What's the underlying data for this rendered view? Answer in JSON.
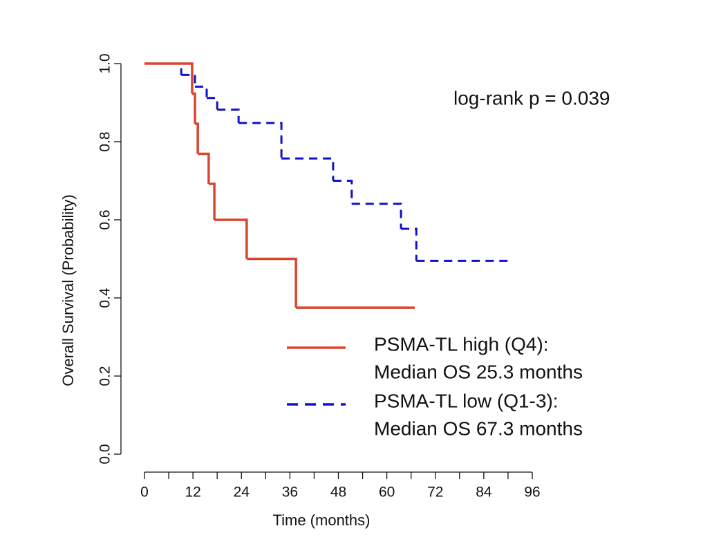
{
  "chart_data": {
    "type": "step",
    "xlabel": "Time (months)",
    "ylabel": "Overall Survival (Probability)",
    "annotation": "log-rank p = 0.039",
    "xlim": [
      0,
      96
    ],
    "ylim": [
      0,
      1
    ],
    "xticks": [
      0,
      12,
      24,
      36,
      48,
      60,
      72,
      84,
      96
    ],
    "xminor_ticks": [
      6,
      18,
      30,
      42,
      54,
      66,
      78,
      90
    ],
    "yticks": [
      {
        "value": 0,
        "label": "0.0"
      },
      0.2,
      0.4,
      0.6,
      0.8,
      {
        "value": 1,
        "label": "1.0"
      }
    ],
    "series": [
      {
        "name": "PSMA-TL high (Q4):",
        "note": "Median OS 25.3 months",
        "color": "#d9452f",
        "dash": false,
        "x": [
          0,
          11.8,
          12.5,
          13.2,
          15.9,
          17.3,
          25.3,
          37.5,
          66.9
        ],
        "values": [
          1,
          0.923,
          0.846,
          0.769,
          0.692,
          0.6,
          0.5,
          0.375,
          0.375
        ]
      },
      {
        "name": "PSMA-TL low (Q1-3):",
        "note": "Median OS 67.3 months",
        "color": "#1010c8",
        "dash": true,
        "x": [
          0,
          9.1,
          12.5,
          15.4,
          18.0,
          23.3,
          33.9,
          46.7,
          51.3,
          63.5,
          67.3,
          90.5
        ],
        "values": [
          1,
          0.971,
          0.941,
          0.912,
          0.882,
          0.848,
          0.757,
          0.7,
          0.641,
          0.577,
          0.495,
          0.495
        ]
      }
    ]
  }
}
